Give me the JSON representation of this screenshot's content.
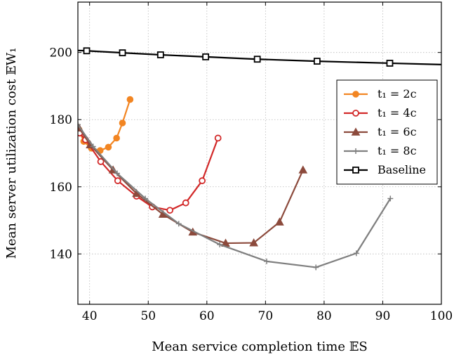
{
  "chart_data": {
    "type": "line",
    "xlabel": "Mean service completion time 𝔼S",
    "ylabel": "Mean server utilization cost 𝔼W₁",
    "xlim": [
      38,
      100
    ],
    "ylim": [
      125,
      215
    ],
    "x_ticks": [
      "40",
      "50",
      "60",
      "70",
      "80",
      "90",
      "100"
    ],
    "y_ticks": [
      "140",
      "160",
      "180",
      "200"
    ],
    "grid": true,
    "legend_position": "right",
    "series": [
      {
        "name": "t₁ = 2c",
        "color": "#f28522",
        "marker": "filled-circle",
        "points": [
          [
            38.2,
            177.0
          ],
          [
            39.0,
            173.5
          ],
          [
            40.3,
            171.5
          ],
          [
            41.8,
            170.8
          ],
          [
            43.2,
            171.8
          ],
          [
            44.6,
            174.5
          ],
          [
            45.6,
            179.0
          ],
          [
            46.9,
            186.0
          ]
        ]
      },
      {
        "name": "t₁ = 4c",
        "color": "#d22828",
        "marker": "open-circle",
        "points": [
          [
            38.3,
            176.0
          ],
          [
            39.3,
            174.0
          ],
          [
            41.9,
            167.5
          ],
          [
            44.8,
            161.8
          ],
          [
            48.0,
            157.2
          ],
          [
            50.7,
            154.0
          ],
          [
            53.7,
            153.0
          ],
          [
            56.4,
            155.2
          ],
          [
            59.2,
            161.8
          ],
          [
            61.9,
            174.5
          ]
        ]
      },
      {
        "name": "t₁ = 6c",
        "color": "#8c4a3c",
        "marker": "triangle",
        "points": [
          [
            38.2,
            177.5
          ],
          [
            40.1,
            172.5
          ],
          [
            44.0,
            165.0
          ],
          [
            48.0,
            158.0
          ],
          [
            52.5,
            151.8
          ],
          [
            57.6,
            146.5
          ],
          [
            63.2,
            143.2
          ],
          [
            68.0,
            143.3
          ],
          [
            72.4,
            149.5
          ],
          [
            76.4,
            165.0
          ]
        ]
      },
      {
        "name": "t₁ = 8c",
        "color": "#7f7f7f",
        "marker": "plus",
        "points": [
          [
            38.0,
            178.5
          ],
          [
            40.6,
            172.0
          ],
          [
            44.7,
            164.0
          ],
          [
            49.5,
            156.5
          ],
          [
            55.2,
            149.0
          ],
          [
            62.2,
            142.8
          ],
          [
            70.2,
            137.8
          ],
          [
            78.6,
            136.0
          ],
          [
            85.5,
            140.2
          ],
          [
            91.3,
            156.5
          ]
        ]
      },
      {
        "name": "Baseline",
        "color": "#000000",
        "marker": "open-square",
        "points": [
          [
            38.0,
            200.6
          ],
          [
            39.5,
            200.5
          ],
          [
            45.6,
            199.9
          ],
          [
            52.1,
            199.3
          ],
          [
            59.8,
            198.7
          ],
          [
            68.6,
            198.0
          ],
          [
            78.8,
            197.4
          ],
          [
            91.2,
            196.8
          ],
          [
            100.0,
            196.4
          ]
        ]
      }
    ]
  }
}
